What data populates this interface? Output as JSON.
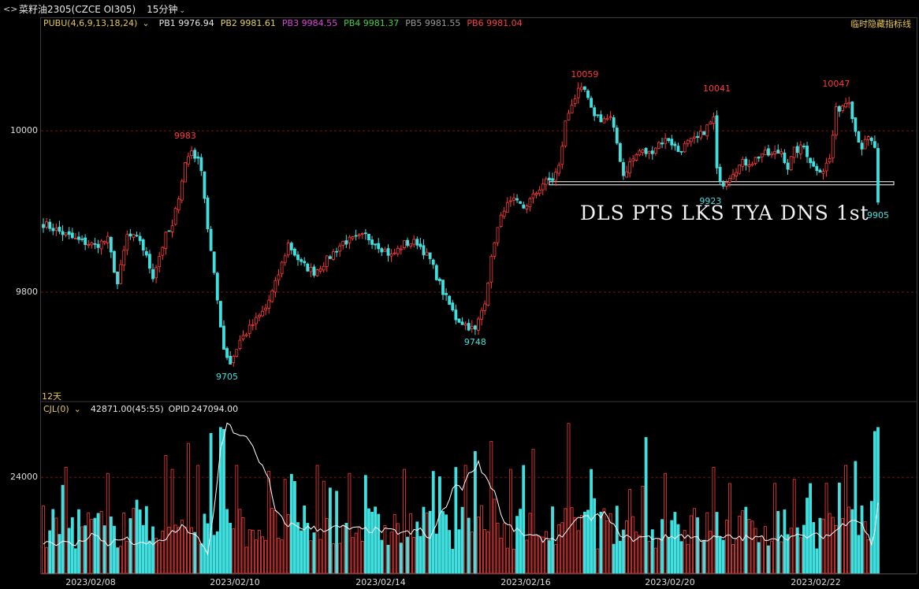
{
  "header": {
    "title": "菜籽油2305(CZCE OI305)",
    "period": "15分钟"
  },
  "indicator_bar": {
    "name": "PUBU(4,6,9,13,18,24)",
    "items": [
      {
        "label": "PB1",
        "value": "9976.94",
        "color": "#e6e6e6"
      },
      {
        "label": "PB2",
        "value": "9981.61",
        "color": "#e8d44a"
      },
      {
        "label": "PB3",
        "value": "9984.55",
        "color": "#e040e0"
      },
      {
        "label": "PB4",
        "value": "9981.37",
        "color": "#3ed43e"
      },
      {
        "label": "PB5",
        "value": "9981.55",
        "color": "#9a9a9a"
      },
      {
        "label": "PB6",
        "value": "9981.04",
        "color": "#ff4040"
      }
    ],
    "hide_label": "临时隐藏指标线"
  },
  "volume_bar": {
    "name": "CJL(0)",
    "value": "42871.00(45:55)",
    "opid_label": "OPID",
    "opid_value": "247094.00"
  },
  "days_label": "12天",
  "overlay_text": "DLS PTS LKS TYA DNS 1st",
  "colors": {
    "up": "#ff3b3b",
    "down": "#40e0e0",
    "oi_line": "#ffffff",
    "grid": "#7a1010"
  },
  "chart_data": {
    "type": "candlestick",
    "y_ticks_price": [
      "10000",
      "9800"
    ],
    "y_ticks_volume": [
      "24000"
    ],
    "x_labels": [
      "2023/02/08",
      "2023/02/10",
      "2023/02/14",
      "2023/02/16",
      "2023/02/20",
      "2023/02/22"
    ],
    "ylim_price": [
      9674,
      10133
    ],
    "ylim_volume": [
      0,
      41000
    ],
    "support_level": 9935,
    "annotations": [
      {
        "text": "9983",
        "price": 9983,
        "bar": 44,
        "kind": "high"
      },
      {
        "text": "9705",
        "price": 9705,
        "bar": 57,
        "kind": "low"
      },
      {
        "text": "9748",
        "price": 9748,
        "bar": 134,
        "kind": "low"
      },
      {
        "text": "10059",
        "price": 10059,
        "bar": 168,
        "kind": "high"
      },
      {
        "text": "10041",
        "price": 10041,
        "bar": 209,
        "kind": "high"
      },
      {
        "text": "9923",
        "price": 9923,
        "bar": 207,
        "kind": "low"
      },
      {
        "text": "10047",
        "price": 10047,
        "bar": 246,
        "kind": "high"
      },
      {
        "text": "9905",
        "price": 9905,
        "bar": 259,
        "kind": "low"
      }
    ],
    "close_path": [
      [
        0,
        9885
      ],
      [
        10,
        9865
      ],
      [
        16,
        9858
      ],
      [
        20,
        9865
      ],
      [
        23,
        9810
      ],
      [
        26,
        9870
      ],
      [
        30,
        9865
      ],
      [
        34,
        9820
      ],
      [
        38,
        9870
      ],
      [
        40,
        9880
      ],
      [
        44,
        9960
      ],
      [
        46,
        9976
      ],
      [
        49,
        9955
      ],
      [
        51,
        9880
      ],
      [
        53,
        9820
      ],
      [
        56,
        9730
      ],
      [
        58,
        9712
      ],
      [
        61,
        9740
      ],
      [
        64,
        9755
      ],
      [
        67,
        9770
      ],
      [
        69,
        9780
      ],
      [
        72,
        9810
      ],
      [
        76,
        9860
      ],
      [
        80,
        9835
      ],
      [
        84,
        9825
      ],
      [
        88,
        9840
      ],
      [
        93,
        9862
      ],
      [
        97,
        9866
      ],
      [
        100,
        9870
      ],
      [
        104,
        9858
      ],
      [
        108,
        9845
      ],
      [
        112,
        9860
      ],
      [
        116,
        9862
      ],
      [
        120,
        9840
      ],
      [
        124,
        9800
      ],
      [
        128,
        9768
      ],
      [
        131,
        9760
      ],
      [
        134,
        9752
      ],
      [
        137,
        9790
      ],
      [
        140,
        9865
      ],
      [
        143,
        9905
      ],
      [
        146,
        9912
      ],
      [
        149,
        9905
      ],
      [
        152,
        9918
      ],
      [
        155,
        9935
      ],
      [
        158,
        9940
      ],
      [
        160,
        9955
      ],
      [
        162,
        10010
      ],
      [
        164,
        10035
      ],
      [
        166,
        10048
      ],
      [
        168,
        10050
      ],
      [
        170,
        10025
      ],
      [
        173,
        10015
      ],
      [
        176,
        10015
      ],
      [
        178,
        9985
      ],
      [
        180,
        9945
      ],
      [
        182,
        9960
      ],
      [
        185,
        9975
      ],
      [
        188,
        9972
      ],
      [
        191,
        9985
      ],
      [
        194,
        9990
      ],
      [
        197,
        9975
      ],
      [
        200,
        9985
      ],
      [
        203,
        9990
      ],
      [
        206,
        10005
      ],
      [
        208,
        10015
      ],
      [
        209,
        9950
      ],
      [
        211,
        9935
      ],
      [
        214,
        9950
      ],
      [
        217,
        9960
      ],
      [
        220,
        9962
      ],
      [
        223,
        9972
      ],
      [
        226,
        9970
      ],
      [
        229,
        9975
      ],
      [
        231,
        9955
      ],
      [
        233,
        9975
      ],
      [
        236,
        9980
      ],
      [
        239,
        9955
      ],
      [
        242,
        9952
      ],
      [
        244,
        9965
      ],
      [
        246,
        10025
      ],
      [
        248,
        10032
      ],
      [
        250,
        10040
      ],
      [
        252,
        10000
      ],
      [
        254,
        9980
      ],
      [
        256,
        9990
      ],
      [
        258,
        9980
      ],
      [
        259,
        9908
      ]
    ],
    "volume_peaks": [
      [
        7,
        26500
      ],
      [
        20,
        25000
      ],
      [
        38,
        29500
      ],
      [
        40,
        26000
      ],
      [
        45,
        32500
      ],
      [
        48,
        27000
      ],
      [
        52,
        35000
      ],
      [
        55,
        36500
      ],
      [
        56,
        36000
      ],
      [
        60,
        27000
      ],
      [
        70,
        25500
      ],
      [
        75,
        23500
      ],
      [
        78,
        23000
      ],
      [
        85,
        27000
      ],
      [
        95,
        25000
      ],
      [
        100,
        24500
      ],
      [
        112,
        26000
      ],
      [
        121,
        25500
      ],
      [
        128,
        26500
      ],
      [
        131,
        27000
      ],
      [
        134,
        30500
      ],
      [
        139,
        33000
      ],
      [
        145,
        26000
      ],
      [
        149,
        27000
      ],
      [
        152,
        31000
      ],
      [
        163,
        37500
      ],
      [
        170,
        26000
      ],
      [
        182,
        21000
      ],
      [
        187,
        34000
      ],
      [
        193,
        25000
      ],
      [
        208,
        26500
      ],
      [
        227,
        22500
      ],
      [
        233,
        23500
      ],
      [
        243,
        22500
      ],
      [
        249,
        27000
      ],
      [
        252,
        28000
      ],
      [
        258,
        35500
      ],
      [
        259,
        36500
      ]
    ],
    "oi_path": [
      [
        0,
        8000
      ],
      [
        10,
        7200
      ],
      [
        15,
        9800
      ],
      [
        20,
        7400
      ],
      [
        25,
        8700
      ],
      [
        30,
        7000
      ],
      [
        36,
        7800
      ],
      [
        43,
        11500
      ],
      [
        47,
        9800
      ],
      [
        51,
        4500
      ],
      [
        53,
        16000
      ],
      [
        55,
        31000
      ],
      [
        57,
        38000
      ],
      [
        60,
        34500
      ],
      [
        64,
        33500
      ],
      [
        68,
        26500
      ],
      [
        70,
        23000
      ],
      [
        72,
        15500
      ],
      [
        75,
        12500
      ],
      [
        80,
        11500
      ],
      [
        86,
        11000
      ],
      [
        92,
        11500
      ],
      [
        97,
        11000
      ],
      [
        102,
        10800
      ],
      [
        108,
        10500
      ],
      [
        114,
        10000
      ],
      [
        117,
        11000
      ],
      [
        120,
        8500
      ],
      [
        124,
        16000
      ],
      [
        126,
        18500
      ],
      [
        128,
        22500
      ],
      [
        130,
        21500
      ],
      [
        133,
        26000
      ],
      [
        135,
        27500
      ],
      [
        137,
        24500
      ],
      [
        140,
        20500
      ],
      [
        143,
        12500
      ],
      [
        147,
        10500
      ],
      [
        150,
        9500
      ],
      [
        155,
        8500
      ],
      [
        160,
        9000
      ],
      [
        164,
        11500
      ],
      [
        167,
        14500
      ],
      [
        170,
        13500
      ],
      [
        174,
        15000
      ],
      [
        178,
        10500
      ],
      [
        182,
        8500
      ],
      [
        186,
        9000
      ],
      [
        192,
        8800
      ],
      [
        198,
        9500
      ],
      [
        205,
        8500
      ],
      [
        212,
        9000
      ],
      [
        220,
        8700
      ],
      [
        228,
        9000
      ],
      [
        236,
        9200
      ],
      [
        244,
        9500
      ],
      [
        248,
        12000
      ],
      [
        251,
        14000
      ],
      [
        254,
        12500
      ],
      [
        257,
        7500
      ],
      [
        258,
        10000
      ],
      [
        259,
        18000
      ]
    ]
  }
}
